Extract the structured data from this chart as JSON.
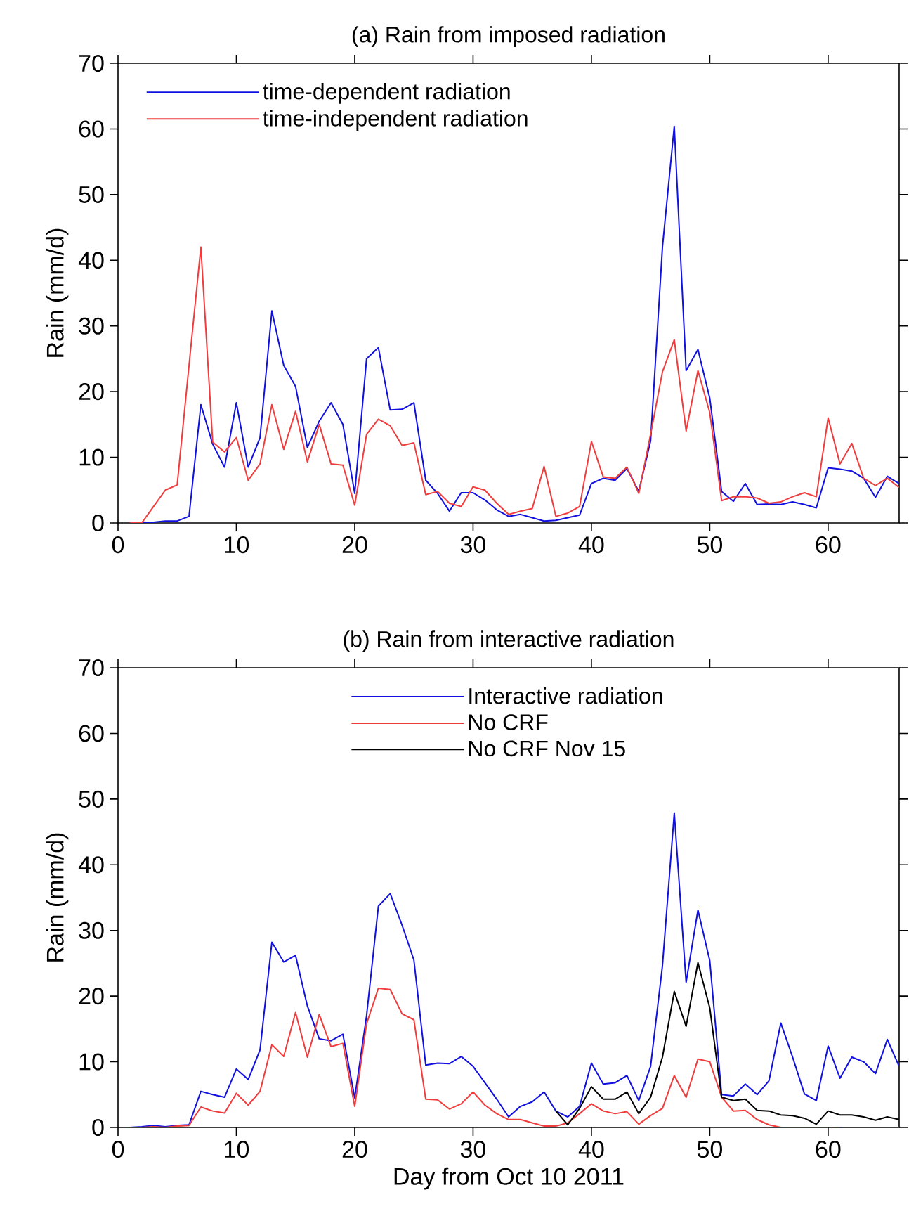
{
  "chart_data": [
    {
      "type": "line",
      "title": "(a) Rain from imposed radiation",
      "ylabel": "Rain (mm/d)",
      "xlim": [
        0,
        66
      ],
      "ylim": [
        0,
        70
      ],
      "xticks": [
        0,
        10,
        20,
        30,
        40,
        50,
        60
      ],
      "yticks": [
        0,
        10,
        20,
        30,
        40,
        50,
        60,
        70
      ],
      "legend": "top left",
      "x": [
        1,
        2,
        3,
        4,
        5,
        6,
        7,
        8,
        9,
        10,
        11,
        12,
        13,
        14,
        15,
        16,
        17,
        18,
        19,
        20,
        21,
        22,
        23,
        24,
        25,
        26,
        27,
        28,
        29,
        30,
        31,
        32,
        33,
        34,
        35,
        36,
        37,
        38,
        39,
        40,
        41,
        42,
        43,
        44,
        45,
        46,
        47,
        48,
        49,
        50,
        51,
        52,
        53,
        54,
        55,
        56,
        57,
        58,
        59,
        60,
        61,
        62,
        63,
        64,
        65,
        66
      ],
      "series": [
        {
          "name": "time-dependent radiation",
          "color": "#1010e0",
          "values": [
            0,
            0,
            0.1,
            0.3,
            0.3,
            1,
            18,
            12,
            8.5,
            18.3,
            8.5,
            13,
            32.3,
            24,
            20.8,
            11.5,
            15.5,
            18.3,
            15,
            4.5,
            25,
            26.7,
            17.2,
            17.3,
            18.3,
            6.5,
            4.5,
            1.8,
            4.6,
            4.6,
            3.5,
            2,
            1,
            1.3,
            0.8,
            0.3,
            0.4,
            0.8,
            1.2,
            6,
            6.8,
            6.5,
            8.3,
            4.8,
            12.5,
            42,
            60.4,
            23.2,
            26.4,
            19,
            4.8,
            3.3,
            6,
            2.8,
            2.9,
            2.8,
            3.2,
            2.8,
            2.3,
            8.4,
            8.2,
            7.9,
            6.8,
            3.9,
            7.1,
            6
          ]
        },
        {
          "name": "time-independent radiation",
          "color": "#f03c3c",
          "values": [
            0,
            0,
            2.5,
            5,
            5.8,
            24,
            42,
            12.3,
            10.8,
            13,
            6.5,
            9,
            18,
            11.2,
            17,
            9.3,
            15,
            9,
            8.8,
            2.7,
            13.5,
            15.8,
            14.8,
            11.8,
            12.2,
            4.3,
            4.8,
            3,
            2.5,
            5.5,
            5,
            3,
            1.3,
            1.8,
            2.2,
            8.6,
            1,
            1.5,
            2.5,
            12.4,
            7,
            6.8,
            8.5,
            4.5,
            13.5,
            23,
            27.9,
            14,
            23.2,
            16.8,
            3.4,
            4,
            4,
            3.8,
            3,
            3.2,
            4,
            4.6,
            4,
            16,
            9,
            12.1,
            6.8,
            5.7,
            6.8,
            5.4
          ]
        }
      ]
    },
    {
      "type": "line",
      "title": "(b) Rain from interactive radiation",
      "xlabel": "Day from Oct 10 2011",
      "ylabel": "Rain (mm/d)",
      "xlim": [
        0,
        66
      ],
      "ylim": [
        0,
        70
      ],
      "xticks": [
        0,
        10,
        20,
        30,
        40,
        50,
        60
      ],
      "yticks": [
        0,
        10,
        20,
        30,
        40,
        50,
        60,
        70
      ],
      "legend": "top",
      "x": [
        1,
        2,
        3,
        4,
        5,
        6,
        7,
        8,
        9,
        10,
        11,
        12,
        13,
        14,
        15,
        16,
        17,
        18,
        19,
        20,
        21,
        22,
        23,
        24,
        25,
        26,
        27,
        28,
        29,
        30,
        31,
        32,
        33,
        34,
        35,
        36,
        37,
        38,
        39,
        40,
        41,
        42,
        43,
        44,
        45,
        46,
        47,
        48,
        49,
        50,
        51,
        52,
        53,
        54,
        55,
        56,
        57,
        58,
        59,
        60,
        61,
        62,
        63,
        64,
        65,
        66
      ],
      "series": [
        {
          "name": "Interactive radiation",
          "color": "#1010e0",
          "values": [
            0,
            0.1,
            0.3,
            0.1,
            0.3,
            0.4,
            5.5,
            5,
            4.6,
            8.9,
            7.3,
            11.8,
            28.2,
            25.2,
            26.2,
            18.5,
            13.5,
            13.2,
            14.2,
            4.5,
            17,
            33.7,
            35.6,
            30.8,
            25.5,
            9.5,
            9.8,
            9.7,
            10.8,
            9.3,
            6.8,
            4.3,
            1.6,
            3.2,
            3.9,
            5.4,
            2.5,
            1.6,
            3.2,
            9.8,
            6.6,
            6.8,
            7.9,
            4.1,
            9.3,
            24.6,
            47.9,
            22.1,
            33.1,
            25.4,
            5,
            4.8,
            6.6,
            5,
            7.1,
            15.9,
            10.7,
            5.1,
            4.1,
            12.4,
            7.5,
            10.7,
            10,
            8.2,
            13.4,
            9.3
          ]
        },
        {
          "name": "No CRF",
          "color": "#f03c3c",
          "values": [
            0,
            0,
            0.1,
            0,
            0.2,
            0.3,
            3.1,
            2.5,
            2.2,
            5.2,
            3.4,
            5.5,
            12.6,
            10.8,
            17.5,
            10.7,
            17.2,
            12.3,
            12.8,
            3.2,
            15.8,
            21.2,
            21,
            17.3,
            16.4,
            4.3,
            4.2,
            2.8,
            3.6,
            5.4,
            3.4,
            2.1,
            1.2,
            1.2,
            0.7,
            0.2,
            0.2,
            0.7,
            2.1,
            3.6,
            2.5,
            2.1,
            2.4,
            0.5,
            1.8,
            2.9,
            7.9,
            4.6,
            10.4,
            10,
            4.6,
            2.5,
            2.6,
            1.2,
            0.4,
            0,
            0,
            0,
            0,
            0,
            0,
            null,
            null,
            null,
            null,
            null
          ]
        },
        {
          "name": "No CRF Nov 15",
          "color": "#000000",
          "values": [
            null,
            null,
            null,
            null,
            null,
            null,
            null,
            null,
            null,
            null,
            null,
            null,
            null,
            null,
            null,
            null,
            null,
            null,
            null,
            null,
            null,
            null,
            null,
            null,
            null,
            null,
            null,
            null,
            null,
            null,
            null,
            null,
            null,
            null,
            null,
            null,
            2.5,
            0.4,
            2.9,
            6.2,
            4.3,
            4.3,
            5.4,
            2.1,
            4.6,
            10.7,
            20.7,
            15.4,
            25.1,
            18.2,
            4.6,
            4.1,
            4.3,
            2.6,
            2.5,
            1.9,
            1.8,
            1.4,
            0.5,
            2.5,
            1.9,
            1.9,
            1.6,
            1.1,
            1.6,
            1.2
          ]
        }
      ]
    }
  ]
}
